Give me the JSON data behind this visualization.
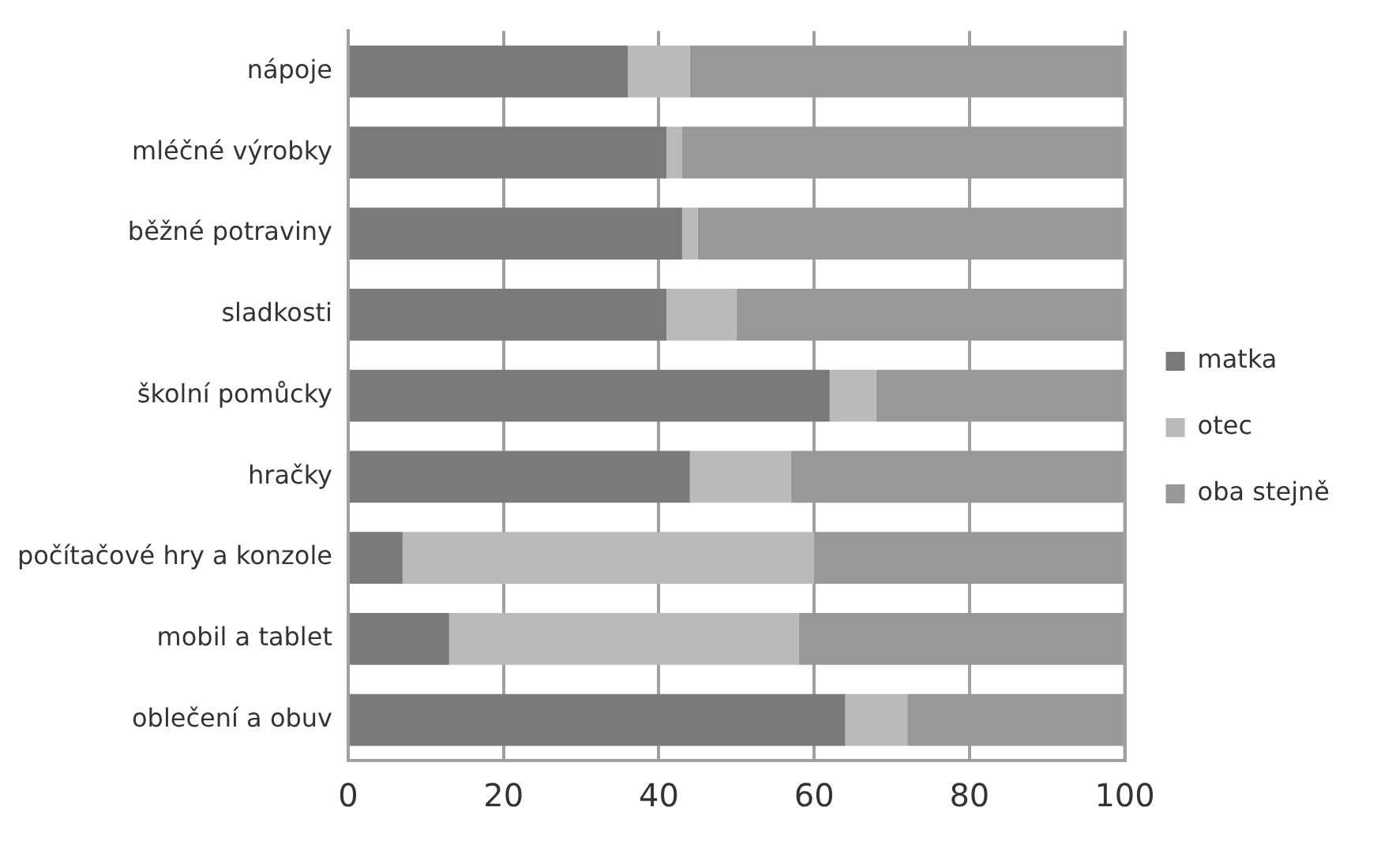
{
  "chart_data": {
    "type": "bar",
    "orientation": "horizontal",
    "stacked": true,
    "categories": [
      "nápoje",
      "mléčné výrobky",
      "běžné potraviny",
      "sladkosti",
      "školní pomůcky",
      "hračky",
      "počítačové hry a konzole",
      "mobil a tablet",
      "oblečení a obuv"
    ],
    "series": [
      {
        "name": "matka",
        "color": "#7a7a7a",
        "values": [
          36,
          41,
          43,
          41,
          62,
          44,
          7,
          13,
          64
        ]
      },
      {
        "name": "otec",
        "color": "#bababa",
        "values": [
          8,
          2,
          2,
          9,
          6,
          13,
          53,
          45,
          8
        ]
      },
      {
        "name": "oba stejně",
        "color": "#989898",
        "values": [
          56,
          57,
          55,
          50,
          32,
          43,
          40,
          42,
          28
        ]
      }
    ],
    "xlim": [
      0,
      100
    ],
    "xticks": [
      0,
      20,
      40,
      60,
      80,
      100
    ],
    "grid": "x",
    "legend": "right"
  }
}
